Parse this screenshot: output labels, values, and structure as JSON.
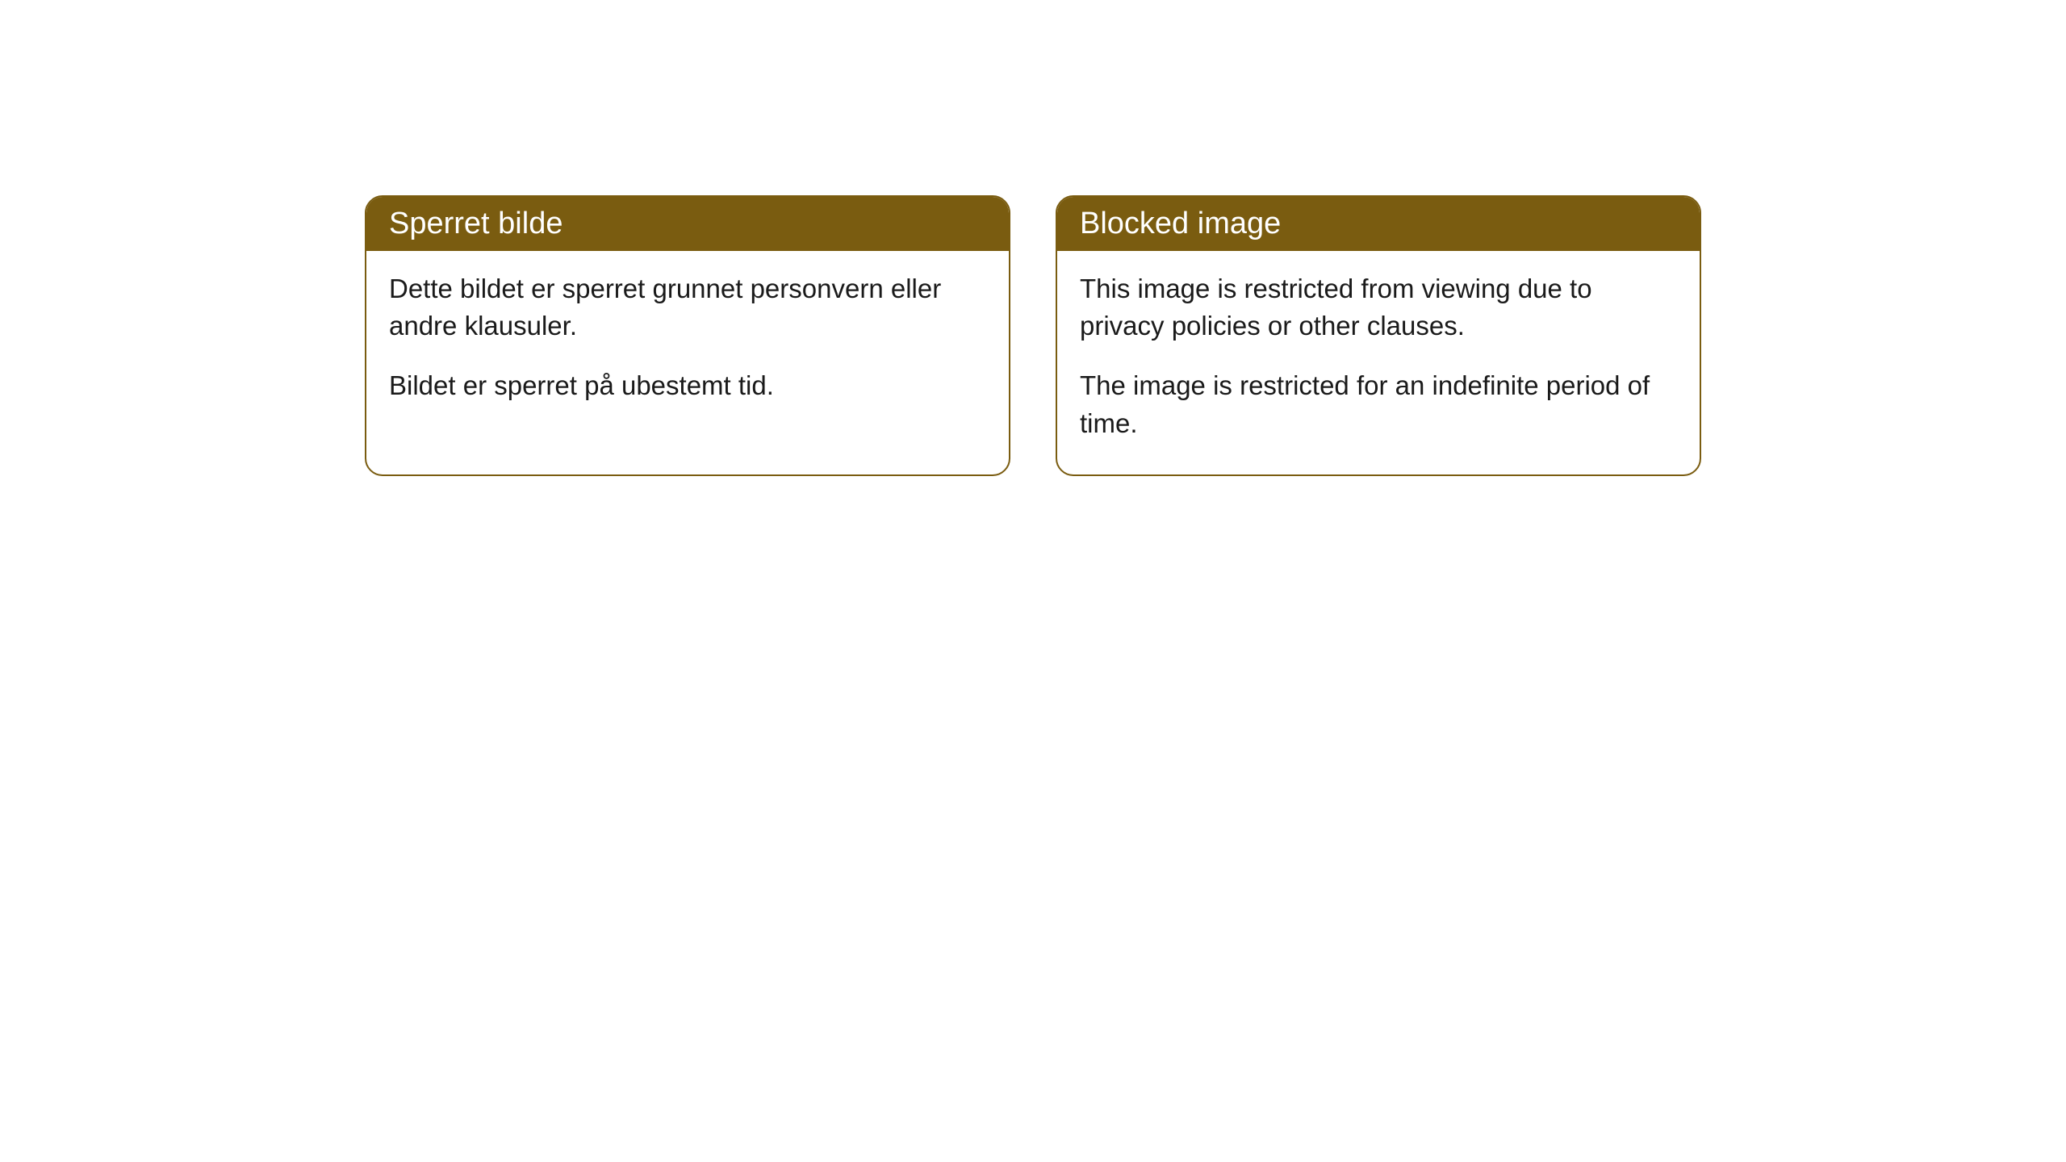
{
  "theme": {
    "header_bg": "#7a5c10",
    "header_text": "#ffffff",
    "border_color": "#7a5c10",
    "body_bg": "#ffffff",
    "body_text": "#1a1a1a",
    "page_bg": "#ffffff",
    "border_radius": 22,
    "header_fontsize": 38,
    "body_fontsize": 33
  },
  "cards": [
    {
      "title": "Sperret bilde",
      "paragraphs": [
        "Dette bildet er sperret grunnet personvern eller andre klausuler.",
        "Bildet er sperret på ubestemt tid."
      ]
    },
    {
      "title": "Blocked image",
      "paragraphs": [
        "This image is restricted from viewing due to privacy policies or other clauses.",
        "The image is restricted for an indefinite period of time."
      ]
    }
  ]
}
